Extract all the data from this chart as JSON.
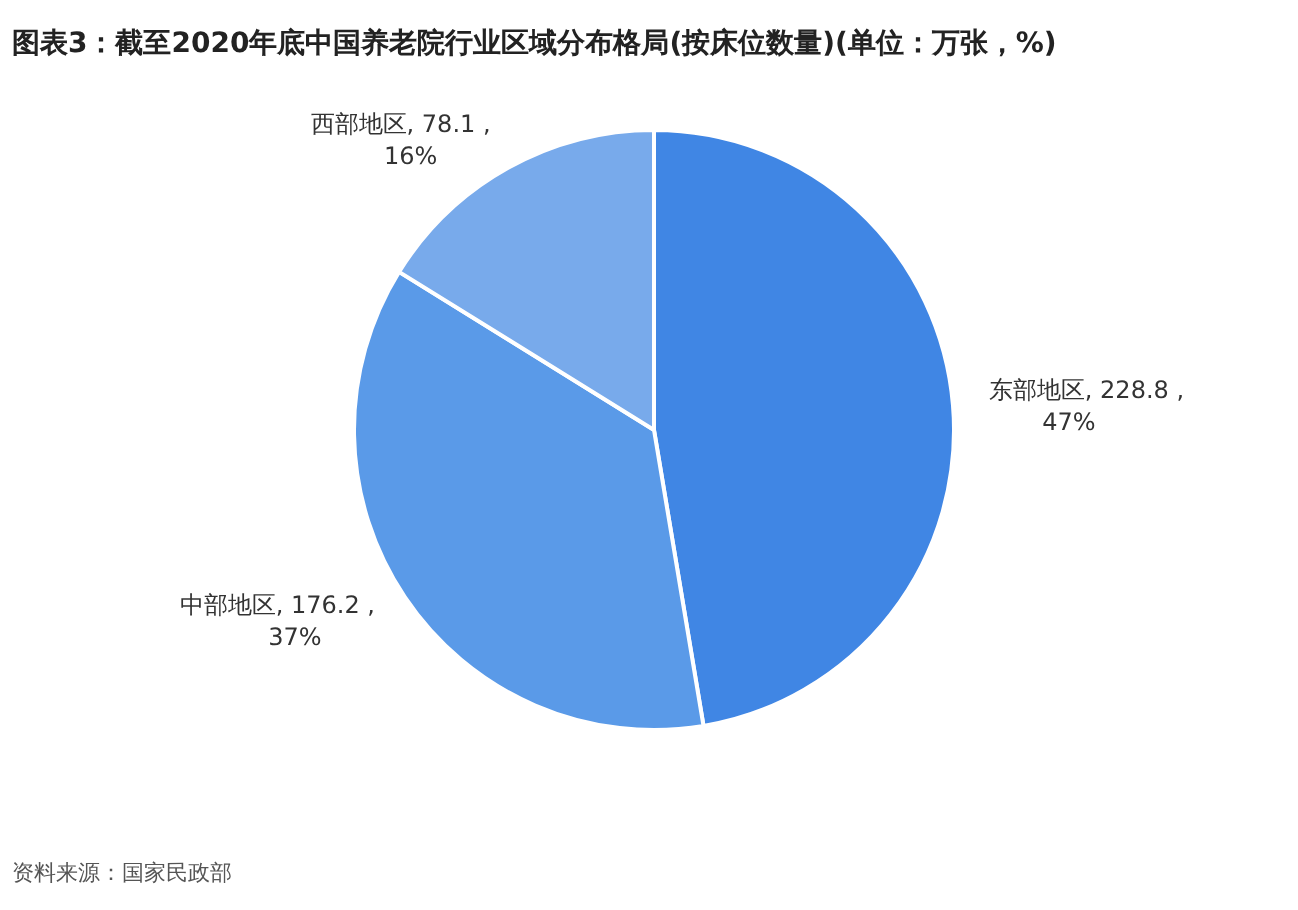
{
  "chart_data": {
    "type": "pie",
    "title": "图表3：截至2020年底中国养老院行业区域分布格局(按床位数量)(单位：万张，%)",
    "categories": [
      "东部地区",
      "中部地区",
      "西部地区"
    ],
    "values": [
      228.8,
      176.2,
      78.1
    ],
    "value_labels": [
      "228.8 , 47%",
      "176.2 , 37%",
      "78.1 , 16%"
    ],
    "colors": [
      "#4086e4",
      "#5a9ae8",
      "#78aaeb"
    ],
    "annotations": [
      "资料来源：国家民政部"
    ]
  }
}
